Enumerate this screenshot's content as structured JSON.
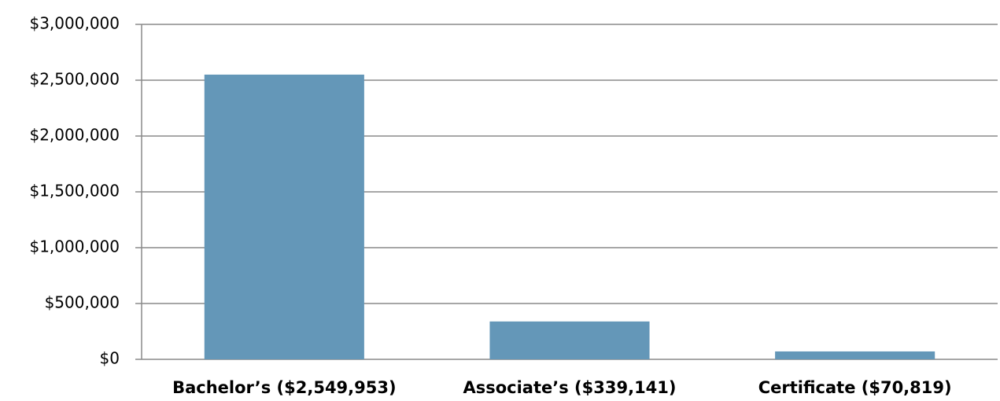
{
  "chart_data": {
    "type": "bar",
    "categories": [
      "Bachelor’s ($2,549,953)",
      "Associate’s ($339,141)",
      "Certificate ($70,819)"
    ],
    "values": [
      2549953,
      339141,
      70819
    ],
    "color": "#6497b8",
    "ylim": [
      0,
      3000000
    ],
    "yticks": [
      {
        "value": 0,
        "label": "$0"
      },
      {
        "value": 500000,
        "label": "$500,000"
      },
      {
        "value": 1000000,
        "label": "$1,000,000"
      },
      {
        "value": 1500000,
        "label": "$1,500,000"
      },
      {
        "value": 2000000,
        "label": "$2,000,000"
      },
      {
        "value": 2500000,
        "label": "$2,500,000"
      },
      {
        "value": 3000000,
        "label": "$3,000,000"
      }
    ],
    "grid": true
  }
}
